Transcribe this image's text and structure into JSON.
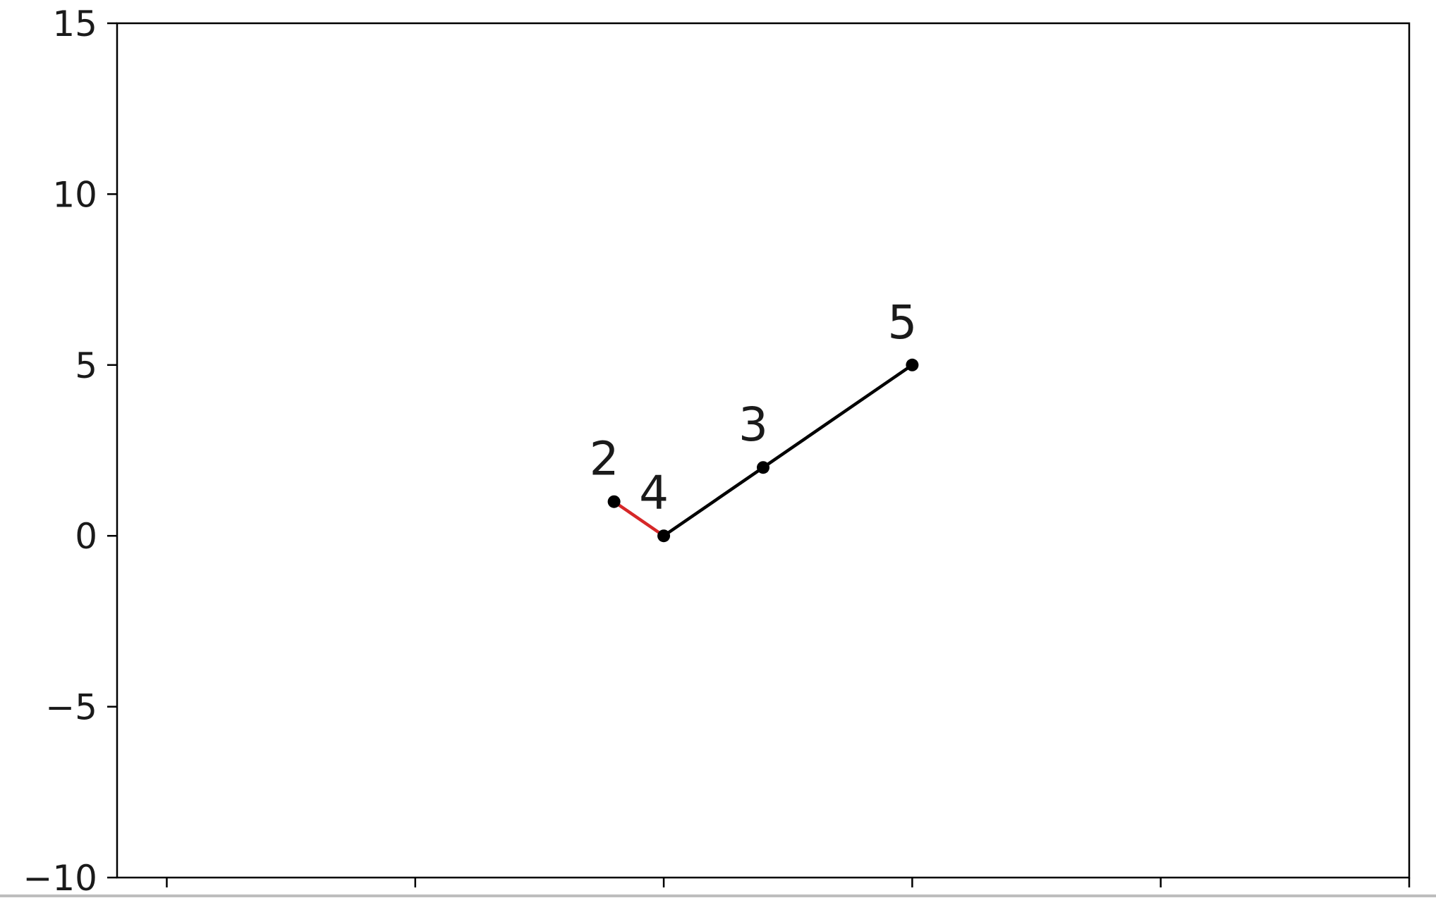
{
  "chart_data": {
    "type": "line",
    "title": "",
    "xlabel": "",
    "ylabel": "",
    "xlim": [
      -1.2,
      4.0
    ],
    "ylim": [
      -10,
      15
    ],
    "x_ticks": [
      -1,
      0,
      1,
      2,
      3,
      4
    ],
    "x_tick_labels_visible": false,
    "y_ticks": [
      -10,
      -5,
      0,
      5,
      10,
      15
    ],
    "y_tick_labels": [
      "−10",
      "−5",
      "0",
      "5",
      "10",
      "15"
    ],
    "grid": false,
    "series": [
      {
        "color": "#d62728",
        "points": [
          {
            "x": 0.8,
            "y": 1,
            "label": "2"
          },
          {
            "x": 1.0,
            "y": 0,
            "label": "4"
          }
        ]
      },
      {
        "color": "#000000",
        "points": [
          {
            "x": 1.0,
            "y": 0,
            "label": "4"
          },
          {
            "x": 1.4,
            "y": 2,
            "label": "3"
          },
          {
            "x": 2.0,
            "y": 5,
            "label": "5"
          }
        ]
      }
    ],
    "point_labels": [
      {
        "x": 0.8,
        "y": 1,
        "text": "2"
      },
      {
        "x": 1.0,
        "y": 0,
        "text": "4"
      },
      {
        "x": 1.4,
        "y": 2,
        "text": "3"
      },
      {
        "x": 2.0,
        "y": 5,
        "text": "5"
      }
    ],
    "marker_color": "#000000"
  }
}
